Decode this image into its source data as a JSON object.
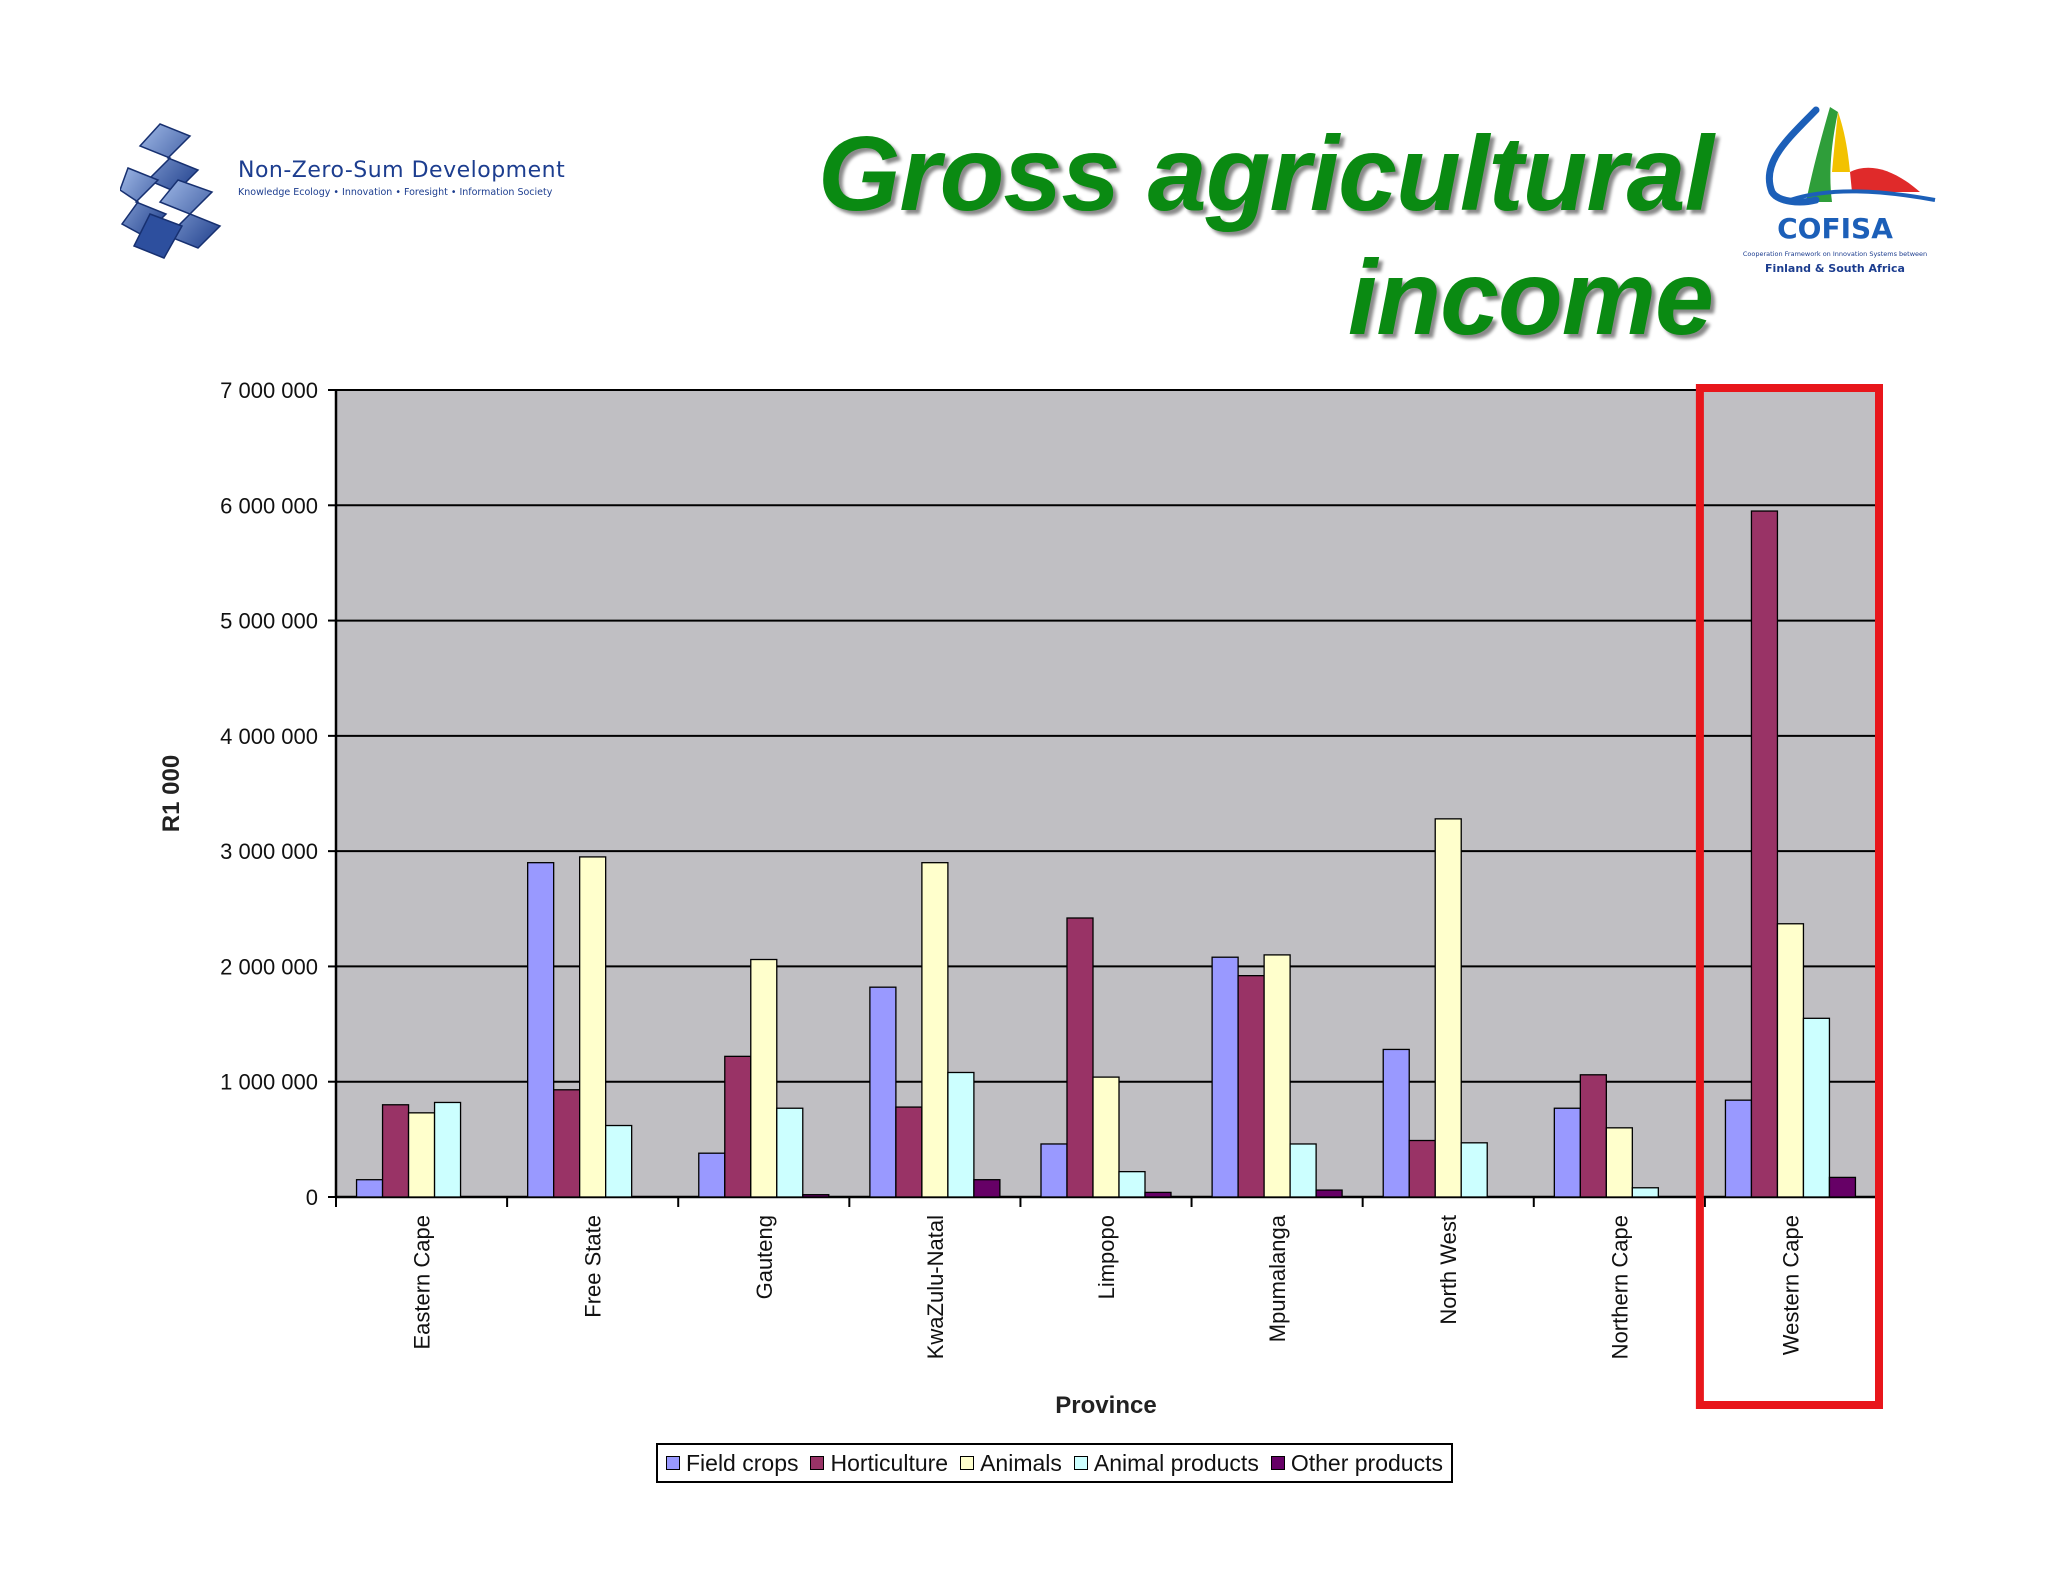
{
  "slide": {
    "title_line1": "Gross agricultural",
    "title_line2": "income",
    "title_color": "#0a8a12"
  },
  "logos": {
    "left": {
      "name": "Non-Zero-Sum Development",
      "tagline": "Knowledge Ecology • Innovation • Foresight • Information Society",
      "icon": "nzsd-3d-logo-icon"
    },
    "right": {
      "name": "COFISA",
      "description": "Cooperation Framework on Innovation Systems between",
      "description2": "Finland & South Africa",
      "icon": "cofisa-sail-logo-icon"
    }
  },
  "highlight": {
    "category": "Western Cape",
    "color": "#e8161b"
  },
  "chart_data": {
    "type": "bar",
    "title": "",
    "xlabel": "Province",
    "ylabel": "R1 000",
    "ylim": [
      0,
      7000000
    ],
    "yticks": [
      0,
      1000000,
      2000000,
      3000000,
      4000000,
      5000000,
      6000000,
      7000000
    ],
    "ytick_labels": [
      "0",
      "1 000 000",
      "2 000 000",
      "3 000 000",
      "4 000 000",
      "5 000 000",
      "6 000 000",
      "7 000 000"
    ],
    "grid": true,
    "legend_position": "bottom",
    "plot_background": "#c0bfc3",
    "categories": [
      "Eastern Cape",
      "Free State",
      "Gauteng",
      "KwaZulu-Natal",
      "Limpopo",
      "Mpumalanga",
      "North West",
      "Northern Cape",
      "Western Cape"
    ],
    "series": [
      {
        "name": "Field crops",
        "color": "#9999ff",
        "values": [
          150000,
          2900000,
          380000,
          1820000,
          460000,
          2080000,
          1280000,
          770000,
          840000
        ]
      },
      {
        "name": "Horticulture",
        "color": "#993366",
        "values": [
          800000,
          930000,
          1220000,
          780000,
          2420000,
          1920000,
          490000,
          1060000,
          5950000
        ]
      },
      {
        "name": "Animals",
        "color": "#ffffcc",
        "values": [
          730000,
          2950000,
          2060000,
          2900000,
          1040000,
          2100000,
          3280000,
          600000,
          2370000
        ]
      },
      {
        "name": "Animal products",
        "color": "#ccffff",
        "values": [
          820000,
          620000,
          770000,
          1080000,
          220000,
          460000,
          470000,
          80000,
          1550000
        ]
      },
      {
        "name": "Other products",
        "color": "#660066",
        "values": [
          0,
          0,
          20000,
          150000,
          40000,
          60000,
          0,
          0,
          170000
        ]
      }
    ]
  }
}
